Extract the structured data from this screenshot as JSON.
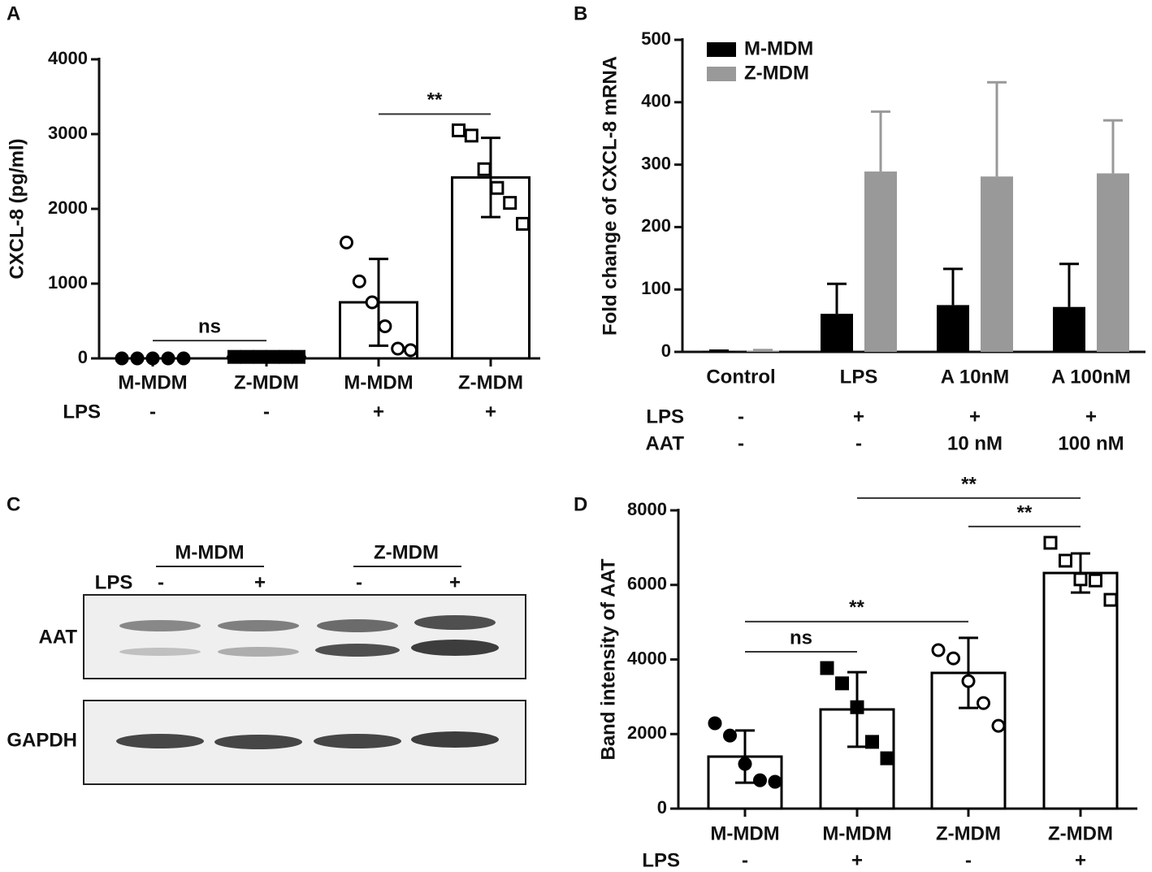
{
  "chart_data": [
    {
      "type": "bar",
      "panel": "A",
      "ylabel": "CXCL-8 (pg/ml)",
      "categories": [
        "M-MDM",
        "Z-MDM",
        "M-MDM",
        "Z-MDM"
      ],
      "rows": [
        {
          "label": "LPS",
          "values": [
            "-",
            "-",
            "+",
            "+"
          ]
        }
      ],
      "values": [
        0,
        20,
        750,
        2420
      ],
      "errors": [
        0,
        0,
        580,
        530
      ],
      "points": [
        [
          0,
          0,
          0,
          0,
          0
        ],
        [
          20,
          20,
          20,
          20,
          20,
          20
        ],
        [
          1550,
          1030,
          750,
          430,
          130,
          110
        ],
        [
          3050,
          2980,
          2530,
          2280,
          2080,
          1800
        ]
      ],
      "markers": [
        "circle",
        "square",
        "circle",
        "square"
      ],
      "marker_filled": [
        true,
        true,
        false,
        false
      ],
      "color": "#ffffff",
      "edgecolor": "#000000",
      "ylim": [
        0,
        4000
      ],
      "yticks": [
        0,
        1000,
        2000,
        3000,
        4000
      ],
      "annotations": [
        {
          "text": "ns",
          "pair": [
            0,
            1
          ]
        },
        {
          "text": "**",
          "pair": [
            2,
            3
          ]
        }
      ]
    },
    {
      "type": "bar",
      "panel": "B",
      "ylabel": "Fold change of CXCL-8 mRNA",
      "categories": [
        "Control",
        "LPS",
        "A 10nM",
        "A 100nM"
      ],
      "series": [
        {
          "name": "M-MDM",
          "color": "#000000",
          "values": [
            1,
            61,
            75,
            72
          ],
          "errors": [
            1,
            48,
            58,
            69
          ]
        },
        {
          "name": "Z-MDM",
          "color": "#999999",
          "values": [
            2,
            289,
            281,
            286
          ],
          "errors": [
            1,
            96,
            151,
            85
          ]
        }
      ],
      "rows": [
        {
          "label": "LPS",
          "values": [
            "-",
            "+",
            "+",
            "+"
          ]
        },
        {
          "label": "AAT",
          "values": [
            "-",
            "-",
            "10 nM",
            "100 nM"
          ]
        }
      ],
      "ylim": [
        0,
        500
      ],
      "yticks": [
        0,
        100,
        200,
        300,
        400,
        500
      ],
      "legend": "upper left",
      "error_bars": "upper"
    },
    {
      "type": "bar",
      "panel": "D",
      "ylabel": "Band intensity of AAT",
      "categories": [
        "M-MDM",
        "M-MDM",
        "Z-MDM",
        "Z-MDM"
      ],
      "rows": [
        {
          "label": "LPS",
          "values": [
            "-",
            "+",
            "-",
            "+"
          ]
        }
      ],
      "values": [
        1395,
        2660,
        3640,
        6320
      ],
      "errors": [
        700,
        1000,
        940,
        525
      ],
      "points": [
        [
          2290,
          1960,
          1200,
          760,
          720
        ],
        [
          3770,
          3360,
          2720,
          1790,
          1350
        ],
        [
          4250,
          4030,
          3420,
          2830,
          2220
        ],
        [
          7130,
          6650,
          6150,
          6120,
          5600
        ]
      ],
      "markers": [
        "circle",
        "square",
        "circle",
        "square"
      ],
      "marker_filled": [
        true,
        true,
        false,
        false
      ],
      "color": "#ffffff",
      "edgecolor": "#000000",
      "ylim": [
        0,
        8000
      ],
      "yticks": [
        0,
        2000,
        4000,
        6000,
        8000
      ],
      "annotations": [
        {
          "text": "ns",
          "pair": [
            0,
            1
          ]
        },
        {
          "text": "**",
          "pair": [
            0,
            2
          ]
        },
        {
          "text": "**",
          "pair": [
            2,
            3
          ]
        },
        {
          "text": "**",
          "pair": [
            1,
            3
          ]
        }
      ]
    }
  ],
  "blot": {
    "panel": "C",
    "groups": [
      "M-MDM",
      "Z-MDM"
    ],
    "row_label": "LPS",
    "lps": [
      "-",
      "+",
      "-",
      "+"
    ],
    "bands": [
      "AAT",
      "GAPDH"
    ]
  }
}
